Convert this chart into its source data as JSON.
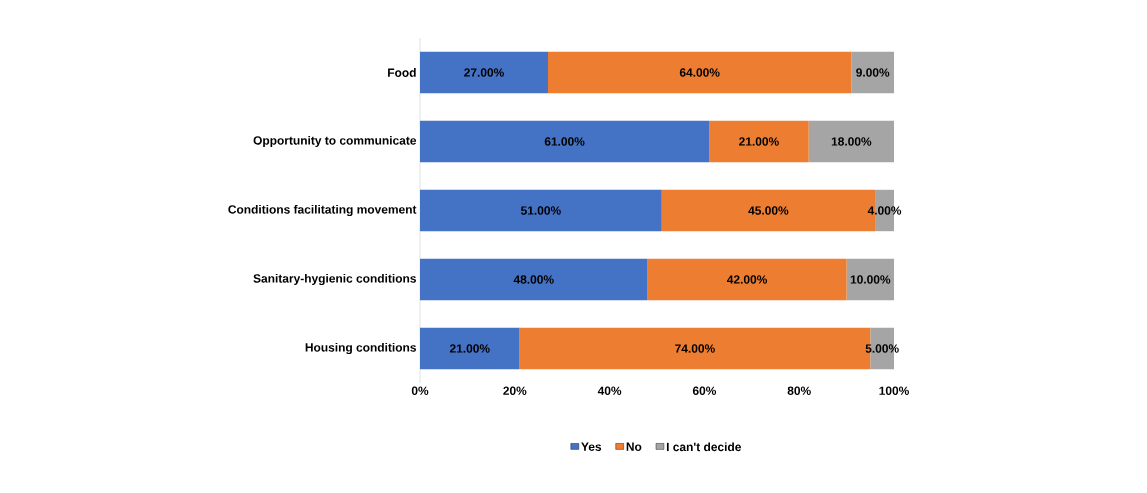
{
  "chart_data": {
    "type": "bar",
    "orientation": "horizontal",
    "stacked": true,
    "categories": [
      "Food",
      "Opportunity to communicate",
      "Conditions facilitating movement",
      "Sanitary-hygienic conditions",
      "Housing conditions"
    ],
    "series": [
      {
        "name": "Yes",
        "color": "#4472c4",
        "values": [
          27,
          61,
          51,
          48,
          21
        ],
        "value_labels": [
          "27.00%",
          "61.00%",
          "51.00%",
          "48.00%",
          "21.00%"
        ]
      },
      {
        "name": "No",
        "color": "#ed7d31",
        "values": [
          64,
          21,
          45,
          42,
          74
        ],
        "value_labels": [
          "64.00%",
          "21.00%",
          "45.00%",
          "42.00%",
          "74.00%"
        ]
      },
      {
        "name": "I can't decide",
        "color": "#a5a5a5",
        "values": [
          9,
          18,
          4,
          10,
          5
        ],
        "value_labels": [
          "9.00%",
          "18.00%",
          "4.00%",
          "10.00%",
          "5.00%"
        ]
      }
    ],
    "xlim": [
      0,
      100
    ],
    "xticks": [
      {
        "value": 0,
        "label": "0%"
      },
      {
        "value": 20,
        "label": "20%"
      },
      {
        "value": 40,
        "label": "40%"
      },
      {
        "value": 60,
        "label": "60%"
      },
      {
        "value": 80,
        "label": "80%"
      },
      {
        "value": 100,
        "label": "100%"
      }
    ],
    "legend": "bottom",
    "grid": false
  }
}
